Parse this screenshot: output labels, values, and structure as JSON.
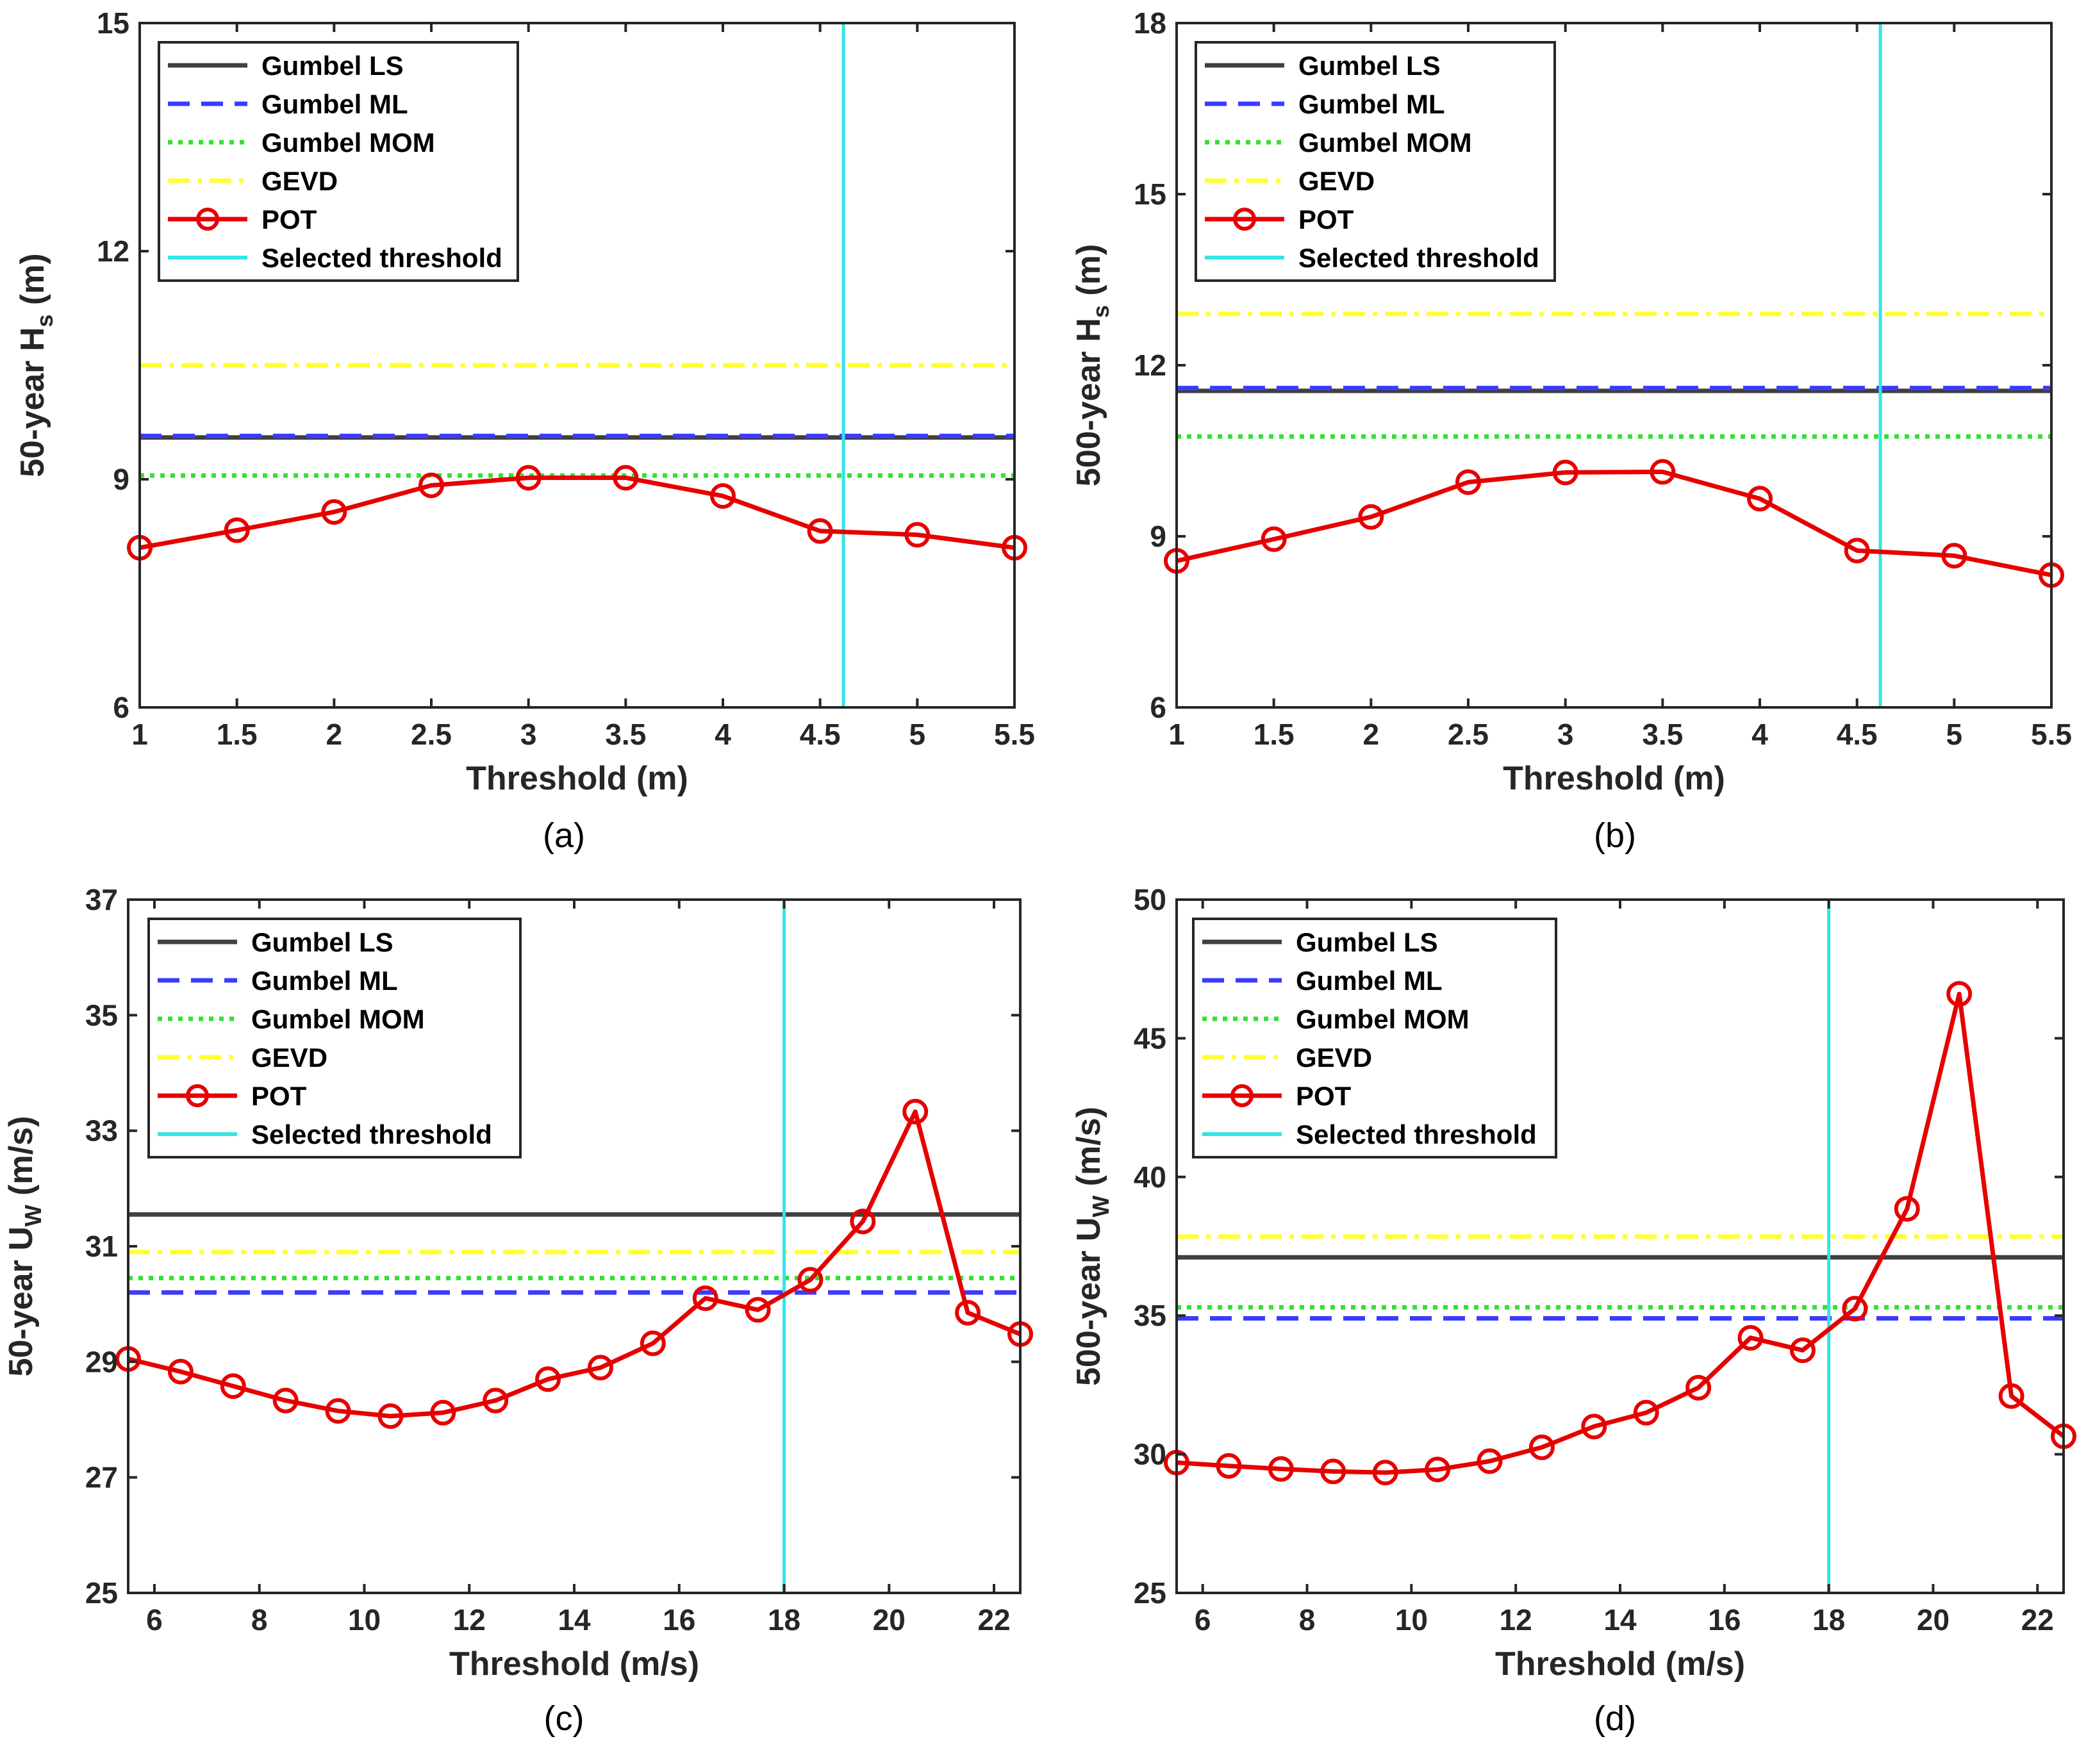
{
  "colors": {
    "gumbel_ls": "#404040",
    "gumbel_ml": "#3b3bff",
    "gumbel_mom": "#33e133",
    "gevd": "#ffff33",
    "pot": "#e60000",
    "selected": "#33e5e5",
    "axis": "#262626"
  },
  "chart_data": [
    {
      "type": "line",
      "panel": "a",
      "caption": "(a)",
      "xlabel": "Threshold (m)",
      "ylabel_main": "50-year H",
      "ylabel_sub": "s",
      "ylabel_tail": " (m)",
      "xlim": [
        1,
        5.5
      ],
      "ylim": [
        6,
        15
      ],
      "xticks": [
        1,
        1.5,
        2,
        2.5,
        3,
        3.5,
        4,
        4.5,
        5,
        5.5
      ],
      "xtick_labels": [
        "1",
        "1.5",
        "2",
        "2.5",
        "3",
        "3.5",
        "4",
        "4.5",
        "5",
        "5.5"
      ],
      "yticks": [
        6,
        9,
        12,
        15
      ],
      "ytick_labels": [
        "6",
        "9",
        "12",
        "15"
      ],
      "hlines": {
        "gumbel_ls": 9.55,
        "gumbel_ml": 9.57,
        "gumbel_mom": 9.05,
        "gevd": 10.5
      },
      "selected_threshold": 4.62,
      "pot": {
        "x": [
          1,
          1.5,
          2,
          2.5,
          3,
          3.5,
          4,
          4.5,
          5,
          5.5
        ],
        "y": [
          8.1,
          8.33,
          8.57,
          8.92,
          9.02,
          9.02,
          8.78,
          8.32,
          8.27,
          8.1
        ]
      },
      "legend": [
        "Gumbel LS",
        "Gumbel ML",
        "Gumbel MOM",
        "GEVD",
        "POT",
        "Selected threshold"
      ],
      "legend_position": "top-left"
    },
    {
      "type": "line",
      "panel": "b",
      "caption": "(b)",
      "xlabel": "Threshold (m)",
      "ylabel_main": "500-year H",
      "ylabel_sub": "s",
      "ylabel_tail": " (m)",
      "xlim": [
        1,
        5.5
      ],
      "ylim": [
        6,
        18
      ],
      "xticks": [
        1,
        1.5,
        2,
        2.5,
        3,
        3.5,
        4,
        4.5,
        5,
        5.5
      ],
      "xtick_labels": [
        "1",
        "1.5",
        "2",
        "2.5",
        "3",
        "3.5",
        "4",
        "4.5",
        "5",
        "5.5"
      ],
      "yticks": [
        6,
        9,
        12,
        15,
        18
      ],
      "ytick_labels": [
        "6",
        "9",
        "12",
        "15",
        "18"
      ],
      "hlines": {
        "gumbel_ls": 11.55,
        "gumbel_ml": 11.6,
        "gumbel_mom": 10.75,
        "gevd": 12.9
      },
      "selected_threshold": 4.62,
      "pot": {
        "x": [
          1,
          1.5,
          2,
          2.5,
          3,
          3.5,
          4,
          4.5,
          5,
          5.5
        ],
        "y": [
          8.57,
          8.95,
          9.34,
          9.95,
          10.12,
          10.13,
          9.66,
          8.75,
          8.66,
          8.32
        ]
      },
      "legend": [
        "Gumbel LS",
        "Gumbel ML",
        "Gumbel MOM",
        "GEVD",
        "POT",
        "Selected threshold"
      ],
      "legend_position": "top-left"
    },
    {
      "type": "line",
      "panel": "c",
      "caption": "(c)",
      "xlabel": "Threshold (m/s)",
      "ylabel_main": "50-year U",
      "ylabel_sub": "W",
      "ylabel_tail": " (m/s)",
      "xlim": [
        5.5,
        22.5
      ],
      "ylim": [
        25,
        37
      ],
      "xticks": [
        6,
        8,
        10,
        12,
        14,
        16,
        18,
        20,
        22
      ],
      "xtick_labels": [
        "6",
        "8",
        "10",
        "12",
        "14",
        "16",
        "18",
        "20",
        "22"
      ],
      "yticks": [
        25,
        27,
        29,
        31,
        33,
        35,
        37
      ],
      "ytick_labels": [
        "25",
        "27",
        "29",
        "31",
        "33",
        "35",
        "37"
      ],
      "hlines": {
        "gumbel_ls": 31.55,
        "gumbel_ml": 30.2,
        "gumbel_mom": 30.45,
        "gevd": 30.9
      },
      "selected_threshold": 18,
      "pot": {
        "x": [
          5.5,
          6.5,
          7.5,
          8.5,
          9.5,
          10.5,
          11.5,
          12.5,
          13.5,
          14.5,
          15.5,
          16.5,
          17.5,
          18.5,
          19.5,
          20.5,
          21.5,
          22.5
        ],
        "y": [
          29.05,
          28.83,
          28.58,
          28.33,
          28.15,
          28.06,
          28.12,
          28.33,
          28.7,
          28.9,
          29.32,
          30.1,
          29.9,
          30.42,
          31.43,
          33.33,
          29.85,
          29.48
        ]
      },
      "legend": [
        "Gumbel LS",
        "Gumbel ML",
        "Gumbel MOM",
        "GEVD",
        "POT",
        "Selected threshold"
      ],
      "legend_position": "top-left"
    },
    {
      "type": "line",
      "panel": "d",
      "caption": "(d)",
      "xlabel": "Threshold (m/s)",
      "ylabel_main": "500-year U",
      "ylabel_sub": "W",
      "ylabel_tail": " (m/s)",
      "xlim": [
        5.5,
        22.5
      ],
      "ylim": [
        25,
        50
      ],
      "xticks": [
        6,
        8,
        10,
        12,
        14,
        16,
        18,
        20,
        22
      ],
      "xtick_labels": [
        "6",
        "8",
        "10",
        "12",
        "14",
        "16",
        "18",
        "20",
        "22"
      ],
      "yticks": [
        25,
        30,
        35,
        40,
        45,
        50
      ],
      "ytick_labels": [
        "25",
        "30",
        "35",
        "40",
        "45",
        "50"
      ],
      "hlines": {
        "gumbel_ls": 37.1,
        "gumbel_ml": 34.9,
        "gumbel_mom": 35.3,
        "gevd": 37.85
      },
      "selected_threshold": 18,
      "pot": {
        "x": [
          5.5,
          6.5,
          7.5,
          8.5,
          9.5,
          10.5,
          11.5,
          12.5,
          13.5,
          14.5,
          15.5,
          16.5,
          17.5,
          18.5,
          19.5,
          20.5,
          21.5,
          22.5
        ],
        "y": [
          29.7,
          29.58,
          29.47,
          29.38,
          29.34,
          29.45,
          29.75,
          30.25,
          31.0,
          31.5,
          32.4,
          34.2,
          33.75,
          35.25,
          38.85,
          46.6,
          32.1,
          30.65
        ]
      },
      "legend": [
        "Gumbel LS",
        "Gumbel ML",
        "Gumbel MOM",
        "GEVD",
        "POT",
        "Selected threshold"
      ],
      "legend_position": "top-left"
    }
  ]
}
